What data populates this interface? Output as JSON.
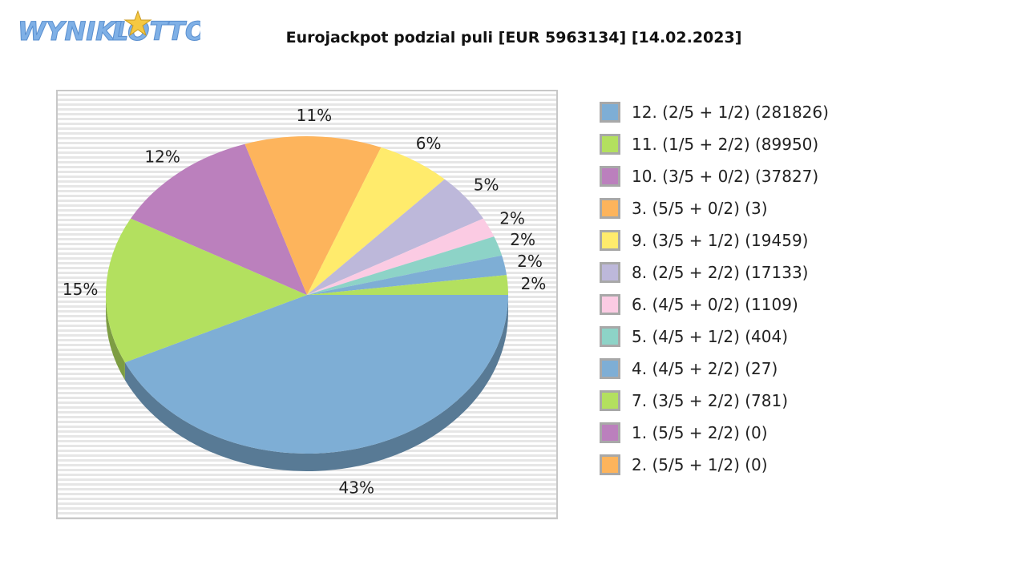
{
  "logo": {
    "text_left": "WYNIKI",
    "text_right": "LOTTO",
    "color": "#7fb0e6",
    "star_color": "#f5c842"
  },
  "chart_data": {
    "type": "pie",
    "title": "Eurojackpot podzial puli [EUR 5963134] [14.02.2023]",
    "slices": [
      {
        "label": "12. (2/5 + 1/2) (281826)",
        "percent_label": "43%",
        "value": 43,
        "color": "#7eaed5"
      },
      {
        "label": "11. (1/5 + 2/2) (89950)",
        "percent_label": "15%",
        "value": 15,
        "color": "#b3e05f"
      },
      {
        "label": "10. (3/5 + 0/2) (37827)",
        "percent_label": "12%",
        "value": 12,
        "color": "#bb80bd"
      },
      {
        "label": "3. (5/5 + 0/2) (3)",
        "percent_label": "11%",
        "value": 11,
        "color": "#fdb45c"
      },
      {
        "label": "9. (3/5 + 1/2) (19459)",
        "percent_label": "6%",
        "value": 6,
        "color": "#ffeb6c"
      },
      {
        "label": "8. (2/5 + 2/2) (17133)",
        "percent_label": "5%",
        "value": 5,
        "color": "#bdb8da"
      },
      {
        "label": "6. (4/5 + 0/2) (1109)",
        "percent_label": "2%",
        "value": 2,
        "color": "#fbcbe3"
      },
      {
        "label": "5. (4/5 + 1/2) (404)",
        "percent_label": "2%",
        "value": 2,
        "color": "#8dd3c7"
      },
      {
        "label": "4. (4/5 + 2/2) (27)",
        "percent_label": "2%",
        "value": 2,
        "color": "#7eaed5"
      },
      {
        "label": "7. (3/5 + 2/2) (781)",
        "percent_label": "2%",
        "value": 2,
        "color": "#b3e05f"
      },
      {
        "label": "1. (5/5 + 2/2) (0)",
        "percent_label": "",
        "value": 0,
        "color": "#bb80bd"
      },
      {
        "label": "2. (5/5 + 1/2) (0)",
        "percent_label": "",
        "value": 0,
        "color": "#fdb45c"
      }
    ],
    "legend_position": "right",
    "three_d": true
  }
}
